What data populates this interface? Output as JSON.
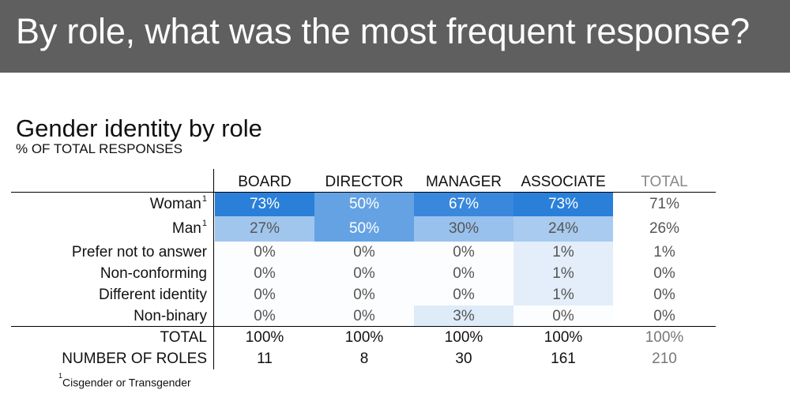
{
  "banner": {
    "text": "By role, what was the most frequent response?"
  },
  "chart_data": {
    "type": "table",
    "title": "Gender identity by role",
    "subtitle": "% OF TOTAL RESPONSES",
    "columns": [
      "BOARD",
      "DIRECTOR",
      "MANAGER",
      "ASSOCIATE",
      "TOTAL"
    ],
    "rows": [
      {
        "label": "Woman",
        "sup": "1",
        "values": [
          "73%",
          "50%",
          "67%",
          "73%",
          "71%"
        ],
        "numeric": [
          73,
          50,
          67,
          73,
          71
        ]
      },
      {
        "label": "Man",
        "sup": "1",
        "values": [
          "27%",
          "50%",
          "30%",
          "24%",
          "26%"
        ],
        "numeric": [
          27,
          50,
          30,
          24,
          26
        ]
      },
      {
        "label": "Prefer not to answer",
        "sup": "",
        "values": [
          "0%",
          "0%",
          "0%",
          "1%",
          "1%"
        ],
        "numeric": [
          0,
          0,
          0,
          1,
          1
        ]
      },
      {
        "label": "Non-conforming",
        "sup": "",
        "values": [
          "0%",
          "0%",
          "0%",
          "1%",
          "0%"
        ],
        "numeric": [
          0,
          0,
          0,
          1,
          0
        ]
      },
      {
        "label": "Different identity",
        "sup": "",
        "values": [
          "0%",
          "0%",
          "0%",
          "1%",
          "0%"
        ],
        "numeric": [
          0,
          0,
          0,
          1,
          0
        ]
      },
      {
        "label": "Non-binary",
        "sup": "",
        "values": [
          "0%",
          "0%",
          "3%",
          "0%",
          "0%"
        ],
        "numeric": [
          0,
          0,
          3,
          0,
          0
        ]
      }
    ],
    "summary_rows": [
      {
        "label": "TOTAL",
        "values": [
          "100%",
          "100%",
          "100%",
          "100%",
          "100%"
        ]
      },
      {
        "label": "NUMBER OF ROLES",
        "values": [
          "11",
          "8",
          "30",
          "161",
          "210"
        ]
      }
    ],
    "footnote": {
      "sup": "1",
      "text": "Cisgender or Transgender"
    },
    "heat_colors": {
      "high": "#2a7fd9",
      "low": "#ffffff",
      "text_on_dark": "#ffffff",
      "text_on_light": "#555555"
    }
  }
}
